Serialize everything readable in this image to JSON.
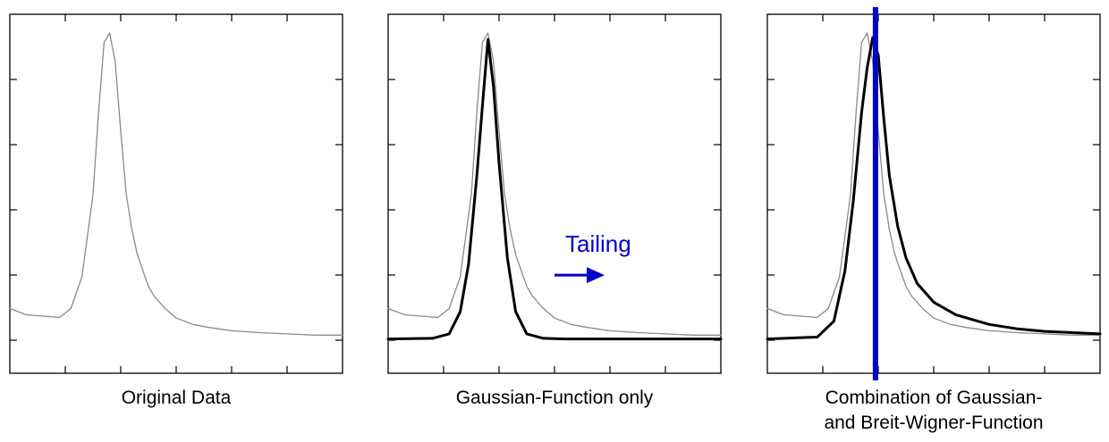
{
  "chart_data": [
    {
      "type": "line",
      "title": "Original Data",
      "xlabel": "",
      "ylabel": "",
      "xlim": [
        0,
        6
      ],
      "ylim": [
        0,
        5.5
      ],
      "grid": false,
      "series": [
        {
          "role": "measured",
          "color": "#8a8a8a",
          "x": [
            0,
            0.3,
            0.6,
            0.9,
            1.1,
            1.3,
            1.5,
            1.6,
            1.7,
            1.8,
            1.9,
            2.0,
            2.1,
            2.2,
            2.3,
            2.4,
            2.5,
            2.6,
            2.8,
            3.0,
            3.3,
            3.6,
            4.0,
            4.5,
            5.0,
            5.5,
            6.0
          ],
          "y": [
            0.5,
            0.4,
            0.38,
            0.36,
            0.5,
            1.0,
            2.3,
            3.6,
            4.7,
            4.85,
            4.4,
            3.3,
            2.3,
            1.75,
            1.35,
            1.1,
            0.85,
            0.7,
            0.5,
            0.35,
            0.25,
            0.2,
            0.15,
            0.12,
            0.1,
            0.08,
            0.08
          ]
        }
      ]
    },
    {
      "type": "line",
      "title": "Gaussian-Function only",
      "xlabel": "",
      "ylabel": "",
      "xlim": [
        0,
        6
      ],
      "ylim": [
        0,
        5.5
      ],
      "grid": false,
      "annotation": {
        "text": "Tailing",
        "x": 3.0,
        "y": 0.9,
        "color": "#0000cc"
      },
      "series": [
        {
          "role": "measured",
          "color": "#8a8a8a",
          "x": [
            0,
            0.3,
            0.6,
            0.9,
            1.1,
            1.3,
            1.5,
            1.6,
            1.7,
            1.8,
            1.9,
            2.0,
            2.1,
            2.2,
            2.3,
            2.4,
            2.5,
            2.6,
            2.8,
            3.0,
            3.3,
            3.6,
            4.0,
            4.5,
            5.0,
            5.5,
            6.0
          ],
          "y": [
            0.5,
            0.4,
            0.38,
            0.36,
            0.5,
            1.0,
            2.3,
            3.6,
            4.7,
            4.85,
            4.4,
            3.3,
            2.3,
            1.75,
            1.35,
            1.1,
            0.85,
            0.7,
            0.5,
            0.35,
            0.25,
            0.2,
            0.15,
            0.12,
            0.1,
            0.08,
            0.08
          ]
        },
        {
          "role": "fit",
          "color": "#000000",
          "x": [
            0,
            0.8,
            1.1,
            1.3,
            1.45,
            1.6,
            1.7,
            1.8,
            1.9,
            2.0,
            2.15,
            2.3,
            2.5,
            2.8,
            3.2,
            6.0
          ],
          "y": [
            0.02,
            0.03,
            0.1,
            0.45,
            1.2,
            2.6,
            3.7,
            4.75,
            4.0,
            2.8,
            1.3,
            0.45,
            0.1,
            0.03,
            0.02,
            0.02
          ]
        }
      ]
    },
    {
      "type": "line",
      "title": "Combination of Gaussian-\nand Breit-Wigner-Function",
      "xlabel": "",
      "ylabel": "",
      "xlim": [
        0,
        6
      ],
      "ylim": [
        0,
        5.5
      ],
      "grid": false,
      "marker_line": {
        "x": 1.95,
        "color": "#0000cc"
      },
      "series": [
        {
          "role": "measured",
          "color": "#8a8a8a",
          "x": [
            0,
            0.3,
            0.6,
            0.9,
            1.1,
            1.3,
            1.5,
            1.6,
            1.7,
            1.8,
            1.9,
            2.0,
            2.1,
            2.2,
            2.3,
            2.4,
            2.5,
            2.6,
            2.8,
            3.0,
            3.3,
            3.6,
            4.0,
            4.5,
            5.0,
            5.5,
            6.0
          ],
          "y": [
            0.5,
            0.4,
            0.38,
            0.36,
            0.5,
            1.0,
            2.3,
            3.6,
            4.7,
            4.85,
            4.4,
            3.3,
            2.3,
            1.75,
            1.35,
            1.1,
            0.85,
            0.7,
            0.5,
            0.35,
            0.25,
            0.2,
            0.15,
            0.12,
            0.1,
            0.08,
            0.08
          ]
        },
        {
          "role": "fit",
          "color": "#000000",
          "x": [
            0,
            0.9,
            1.2,
            1.4,
            1.55,
            1.7,
            1.8,
            1.9,
            2.0,
            2.1,
            2.2,
            2.35,
            2.5,
            2.7,
            3.0,
            3.4,
            4.0,
            4.5,
            5.0,
            5.5,
            6.0
          ],
          "y": [
            0.02,
            0.05,
            0.3,
            1.1,
            2.2,
            3.6,
            4.3,
            4.78,
            4.5,
            3.5,
            2.6,
            1.8,
            1.3,
            0.9,
            0.6,
            0.4,
            0.25,
            0.18,
            0.14,
            0.12,
            0.1
          ]
        }
      ]
    }
  ]
}
